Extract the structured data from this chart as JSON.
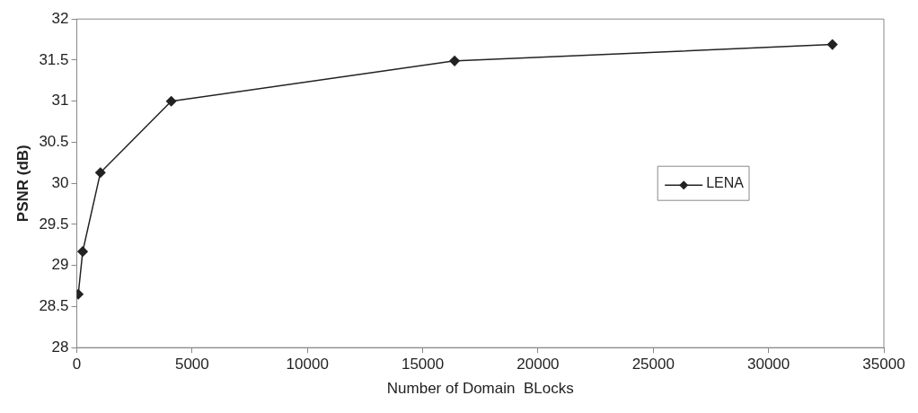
{
  "chart_data": {
    "type": "line",
    "xlabel": "Number of Domain  BLocks",
    "ylabel": "PSNR (dB)",
    "series": [
      {
        "name": "LENA",
        "color": "#222222",
        "x": [
          64,
          256,
          1024,
          4096,
          16384,
          32768
        ],
        "values": [
          28.65,
          29.17,
          30.13,
          31.0,
          31.49,
          31.69
        ]
      }
    ],
    "xlim": [
      0,
      35000
    ],
    "xticks": [
      0,
      5000,
      10000,
      15000,
      20000,
      25000,
      30000,
      35000
    ],
    "ylim": [
      28,
      32
    ],
    "yticks": [
      28,
      28.5,
      29,
      29.5,
      30,
      30.5,
      31,
      31.5,
      32
    ],
    "grid": false,
    "legend": "right",
    "marker": "diamond",
    "line_style": "solid"
  }
}
